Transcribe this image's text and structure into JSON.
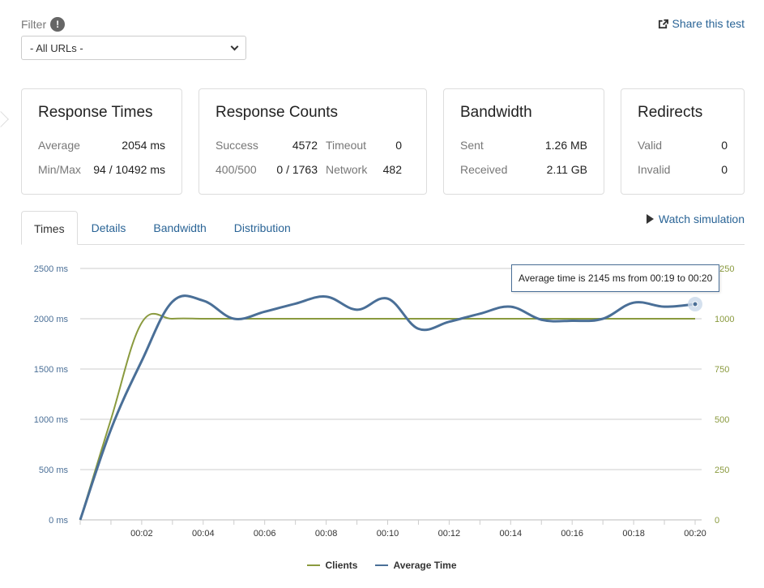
{
  "filter": {
    "label": "Filter",
    "info_glyph": "!",
    "select_value": "- All URLs -"
  },
  "share": {
    "label": "Share this test"
  },
  "cards": {
    "response_times": {
      "title": "Response Times",
      "average_label": "Average",
      "average_value": "2054 ms",
      "minmax_label": "Min/Max",
      "minmax_value": "94 / 10492 ms"
    },
    "response_counts": {
      "title": "Response Counts",
      "success_label": "Success",
      "success_value": "4572",
      "timeout_label": "Timeout",
      "timeout_value": "0",
      "err_label": "400/500",
      "err_value": "0 / 1763",
      "network_label": "Network",
      "network_value": "482"
    },
    "bandwidth": {
      "title": "Bandwidth",
      "sent_label": "Sent",
      "sent_value": "1.26 MB",
      "received_label": "Received",
      "received_value": "2.11 GB"
    },
    "redirects": {
      "title": "Redirects",
      "valid_label": "Valid",
      "valid_value": "0",
      "invalid_label": "Invalid",
      "invalid_value": "0"
    }
  },
  "tabs": [
    {
      "label": "Times",
      "active": true
    },
    {
      "label": "Details",
      "active": false
    },
    {
      "label": "Bandwidth",
      "active": false
    },
    {
      "label": "Distribution",
      "active": false
    }
  ],
  "watch": {
    "label": "Watch simulation"
  },
  "tooltip": {
    "text": "Average time is 2145 ms from 00:19 to 00:20"
  },
  "colors": {
    "clients": "#8a9a3e",
    "avg_time": "#4a6f97",
    "link": "#2a6496"
  },
  "chart_data": {
    "type": "line",
    "x": [
      "00:00",
      "00:01",
      "00:02",
      "00:03",
      "00:04",
      "00:05",
      "00:06",
      "00:07",
      "00:08",
      "00:09",
      "00:10",
      "00:11",
      "00:12",
      "00:13",
      "00:14",
      "00:15",
      "00:16",
      "00:17",
      "00:18",
      "00:19",
      "00:20"
    ],
    "x_ticks": [
      "00:02",
      "00:04",
      "00:06",
      "00:08",
      "00:10",
      "00:12",
      "00:14",
      "00:16",
      "00:18",
      "00:20"
    ],
    "y_left_ticks": [
      "0 ms",
      "500 ms",
      "1000 ms",
      "1500 ms",
      "2000 ms",
      "2500 ms"
    ],
    "y_right_ticks": [
      "0",
      "250",
      "500",
      "750",
      "1000",
      "1250"
    ],
    "ylim_left": [
      0,
      2500
    ],
    "ylim_right": [
      0,
      1250
    ],
    "grid": true,
    "legend_position": "bottom",
    "series": [
      {
        "name": "Clients",
        "axis": "right",
        "values": [
          0,
          500,
          980,
          1000,
          1000,
          1000,
          1000,
          1000,
          1000,
          1000,
          1000,
          1000,
          1000,
          1000,
          1000,
          1000,
          1000,
          1000,
          1000,
          1000,
          1000
        ]
      },
      {
        "name": "Average Time",
        "axis": "left",
        "values": [
          0,
          900,
          1580,
          2170,
          2180,
          2000,
          2070,
          2150,
          2220,
          2090,
          2200,
          1900,
          1970,
          2050,
          2120,
          1990,
          1980,
          2000,
          2160,
          2120,
          2145
        ]
      }
    ]
  }
}
